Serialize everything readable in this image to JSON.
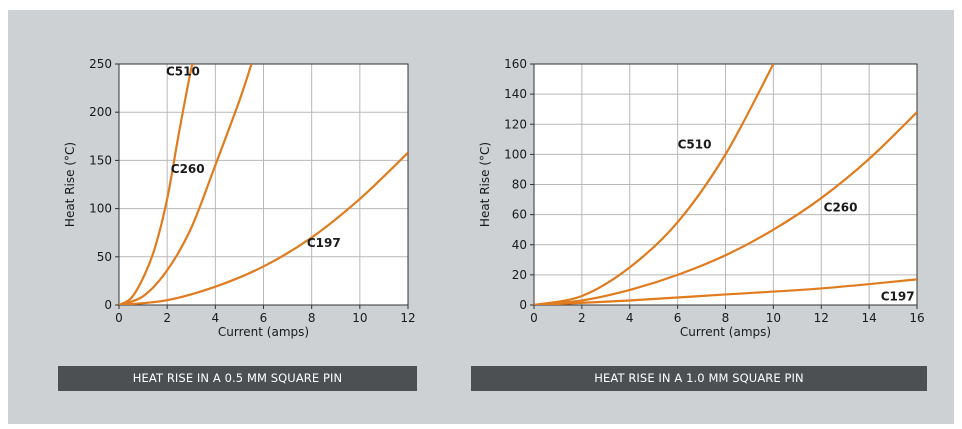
{
  "colors": {
    "curve": "#e07b1e",
    "grid": "#b9b9b9",
    "panel": "#cdd1d4",
    "caption_bg": "#4d5053"
  },
  "chart_data": [
    {
      "type": "line",
      "caption": "HEAT RISE IN A 0.5 MM SQUARE PIN",
      "xlabel": "Current (amps)",
      "ylabel": "Heat Rise (°C)",
      "xlim": [
        0,
        12
      ],
      "ylim": [
        0,
        250
      ],
      "x_ticks": [
        0,
        2,
        4,
        6,
        8,
        10,
        12
      ],
      "y_ticks": [
        0,
        50,
        100,
        150,
        200,
        250
      ],
      "grid": true,
      "series": [
        {
          "name": "C510",
          "x": [
            0,
            0.5,
            1,
            1.5,
            2,
            2.5,
            3,
            3.1
          ],
          "y": [
            0,
            7,
            28,
            60,
            110,
            180,
            245,
            250
          ]
        },
        {
          "name": "C260",
          "x": [
            0,
            1,
            2,
            3,
            4,
            5,
            5.5
          ],
          "y": [
            0,
            9,
            36,
            80,
            145,
            212,
            250
          ]
        },
        {
          "name": "C197",
          "x": [
            0,
            2,
            4,
            6,
            8,
            10,
            12
          ],
          "y": [
            0,
            5,
            19,
            40,
            70,
            110,
            158
          ]
        }
      ]
    },
    {
      "type": "line",
      "caption": "HEAT RISE IN A 1.0 MM SQUARE PIN",
      "xlabel": "Current (amps)",
      "ylabel": "Heat Rise (°C)",
      "xlim": [
        0,
        16
      ],
      "ylim": [
        0,
        160
      ],
      "x_ticks": [
        0,
        2,
        4,
        6,
        8,
        10,
        12,
        14,
        16
      ],
      "y_ticks": [
        0,
        20,
        40,
        60,
        80,
        100,
        120,
        140,
        160
      ],
      "grid": true,
      "series": [
        {
          "name": "C510",
          "x": [
            0,
            2,
            4,
            6,
            8,
            10
          ],
          "y": [
            0,
            6,
            25,
            55,
            100,
            160
          ]
        },
        {
          "name": "C260",
          "x": [
            0,
            2,
            4,
            6,
            8,
            10,
            12,
            14,
            16
          ],
          "y": [
            0,
            3,
            10,
            20,
            33,
            50,
            71,
            97,
            128
          ]
        },
        {
          "name": "C197",
          "x": [
            0,
            4,
            8,
            12,
            16
          ],
          "y": [
            0,
            3,
            7,
            11,
            17
          ]
        }
      ]
    }
  ]
}
